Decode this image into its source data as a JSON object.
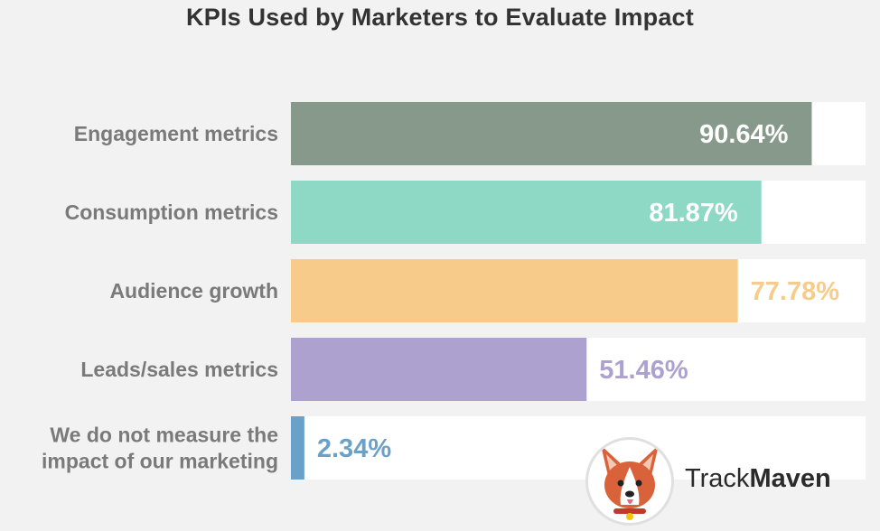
{
  "title": "KPIs Used by Marketers to Evaluate Impact",
  "chart_data": {
    "type": "bar",
    "orientation": "horizontal",
    "categories": [
      [
        "Engagement metrics"
      ],
      [
        "Consumption metrics"
      ],
      [
        "Audience growth"
      ],
      [
        "Leads/sales metrics"
      ],
      [
        "We do not measure the",
        "impact of our marketing"
      ]
    ],
    "values": [
      90.64,
      81.87,
      77.78,
      51.46,
      2.34
    ],
    "value_labels": [
      "90.64%",
      "81.87%",
      "77.78%",
      "51.46%",
      "2.34%"
    ],
    "colors": [
      "#86998a",
      "#8ed8c6",
      "#f7cc8a",
      "#ada1cf",
      "#6aa1c9"
    ],
    "label_colors": [
      "#ffffff",
      "#ffffff",
      "#f7cc8a",
      "#ada1cf",
      "#6aa1c9"
    ],
    "label_inside": [
      true,
      true,
      false,
      false,
      false
    ],
    "xlim": [
      0,
      100
    ],
    "track_color": "#ffffff",
    "grid": false
  },
  "logo": {
    "text_regular": "Track",
    "text_bold": "Maven",
    "icon": "corgi-dog-icon"
  }
}
